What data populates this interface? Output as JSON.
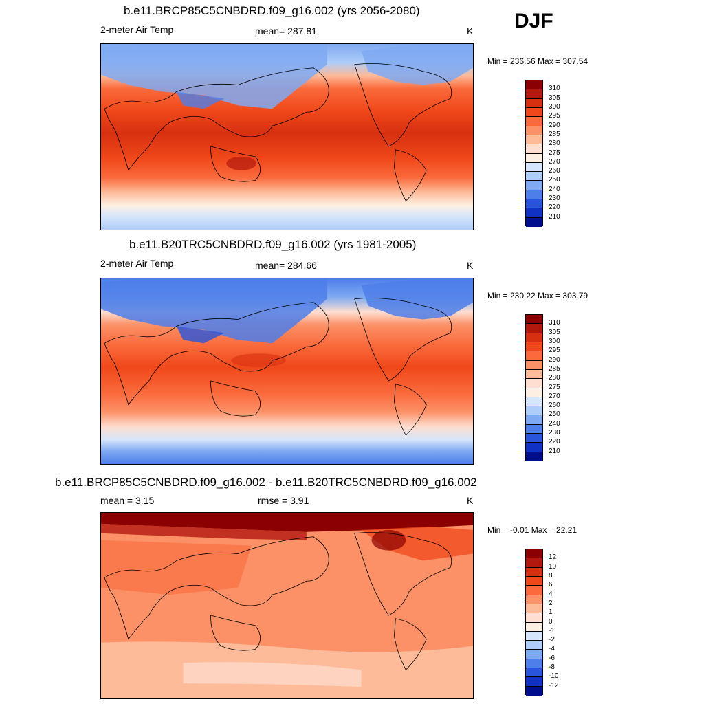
{
  "season": "DJF",
  "panels": [
    {
      "title": "b.e11.BRCP85C5CNBDRD.f09_g16.002 (yrs 2056-2080)",
      "left_label": "2-meter Air Temp",
      "center_label": "mean= 287.81",
      "units": "K",
      "minmax": "Min = 236.56 Max = 307.54",
      "colorbar_labels": [
        "310",
        "305",
        "300",
        "295",
        "290",
        "285",
        "280",
        "275",
        "270",
        "260",
        "250",
        "240",
        "230",
        "220",
        "210"
      ],
      "colorbar_colors": [
        "#8b0000",
        "#b2180e",
        "#d73010",
        "#f0481a",
        "#fa6a3c",
        "#fc9168",
        "#fdbb9a",
        "#fdded0",
        "#fdf0e2",
        "#d5e5fb",
        "#aecdf8",
        "#7fa9f2",
        "#4d7ee9",
        "#2855dc",
        "#1130c4",
        "#000d8c"
      ]
    },
    {
      "title": "b.e11.B20TRC5CNBDRD.f09_g16.002 (yrs 1981-2005)",
      "left_label": "2-meter Air Temp",
      "center_label": "mean= 284.66",
      "units": "K",
      "minmax": "Min = 230.22 Max = 303.79",
      "colorbar_labels": [
        "310",
        "305",
        "300",
        "295",
        "290",
        "285",
        "280",
        "275",
        "270",
        "260",
        "250",
        "240",
        "230",
        "220",
        "210"
      ],
      "colorbar_colors": [
        "#8b0000",
        "#b2180e",
        "#d73010",
        "#f0481a",
        "#fa6a3c",
        "#fc9168",
        "#fdbb9a",
        "#fdded0",
        "#fdf0e2",
        "#d5e5fb",
        "#aecdf8",
        "#7fa9f2",
        "#4d7ee9",
        "#2855dc",
        "#1130c4",
        "#000d8c"
      ]
    },
    {
      "title": "b.e11.BRCP85C5CNBDRD.f09_g16.002 - b.e11.B20TRC5CNBDRD.f09_g16.002",
      "left_label": "mean =   3.15",
      "center_label": "rmse =   3.91",
      "units": "K",
      "minmax": "Min =  -0.01 Max =  22.21",
      "colorbar_labels": [
        "12",
        "10",
        "8",
        "6",
        "4",
        "2",
        "1",
        "0",
        "-1",
        "-2",
        "-4",
        "-6",
        "-8",
        "-10",
        "-12"
      ],
      "colorbar_colors": [
        "#8b0000",
        "#b2180e",
        "#d73010",
        "#f0481a",
        "#fa6a3c",
        "#fc9168",
        "#fdbb9a",
        "#fdded0",
        "#fdf0e2",
        "#d5e5fb",
        "#aecdf8",
        "#7fa9f2",
        "#4d7ee9",
        "#2855dc",
        "#1130c4",
        "#000d8c"
      ]
    }
  ]
}
